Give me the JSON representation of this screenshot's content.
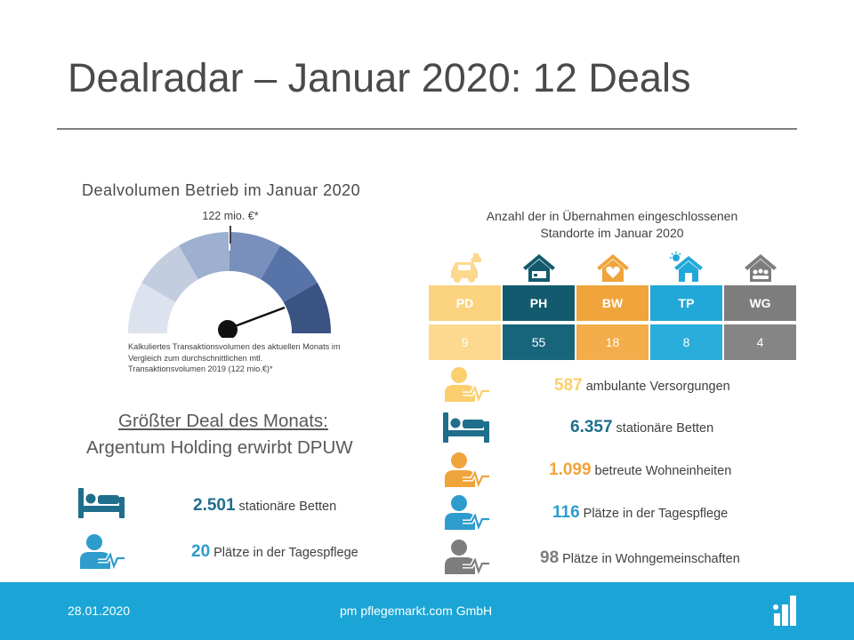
{
  "title": "Dealradar – Januar 2020: 12 Deals",
  "gauge": {
    "title": "Dealvolumen Betrieb im Januar 2020",
    "marker_label": "122 mio. €*",
    "note": "Kalkuliertes Transaktionsvolumen des aktuellen Monats im Vergleich zum durchschnittlichen mtl. Transaktionsvolumen 2019 (122 mio.€)*",
    "segment_colors": [
      "#dde3ee",
      "#c3cde0",
      "#9eb0cf",
      "#7990bd",
      "#5773a8",
      "#3a5383"
    ],
    "needle_color": "#111111"
  },
  "biggest_deal": {
    "heading": "Größter Deal des Monats:",
    "subheading": "Argentum Holding erwirbt DPUW",
    "stats": [
      {
        "icon": "bed-icon",
        "number": "2.501",
        "label": "stationäre Betten",
        "color": "#1f6e8c"
      },
      {
        "icon": "person-heartbeat-icon",
        "number": "20",
        "label": "Plätze in der Tagespflege",
        "color": "#2e9ccd"
      }
    ]
  },
  "sites": {
    "title_line1": "Anzahl der in Übernahmen eingeschlossenen",
    "title_line2": "Standorte im Januar 2020",
    "categories": [
      {
        "code": "PD",
        "count": "9",
        "head_color": "#fbd37e",
        "val_color": "#fcd98f",
        "icon": "car-icon"
      },
      {
        "code": "PH",
        "count": "55",
        "head_color": "#135a6e",
        "val_color": "#17657b",
        "icon": "house-bed-icon"
      },
      {
        "code": "BW",
        "count": "18",
        "head_color": "#f0a43c",
        "val_color": "#f3ad4a",
        "icon": "house-heart-icon"
      },
      {
        "code": "TP",
        "count": "8",
        "head_color": "#22a8d8",
        "val_color": "#29addb",
        "icon": "house-sun-icon"
      },
      {
        "code": "WG",
        "count": "4",
        "head_color": "#7d7d7d",
        "val_color": "#858585",
        "icon": "house-people-icon"
      }
    ],
    "stats": [
      {
        "icon": "person-heartbeat-icon",
        "number": "587",
        "label": "ambulante Versorgungen",
        "color": "#fbcf6e"
      },
      {
        "icon": "bed-icon",
        "number": "6.357",
        "label": "stationäre Betten",
        "color": "#1f6e8c"
      },
      {
        "icon": "person-heartbeat-icon",
        "number": "1.099",
        "label": "betreute Wohneinheiten",
        "color": "#f0a43c"
      },
      {
        "icon": "person-heartbeat-icon",
        "number": "116",
        "label": "Plätze in der Tagespflege",
        "color": "#2e9ccd"
      },
      {
        "icon": "person-heartbeat-icon",
        "number": "98",
        "label": "Plätze in Wohngemeinschaften",
        "color": "#7d7d7d"
      }
    ]
  },
  "footer": {
    "date": "28.01.2020",
    "company": "pm pflegemarkt.com GmbH"
  }
}
